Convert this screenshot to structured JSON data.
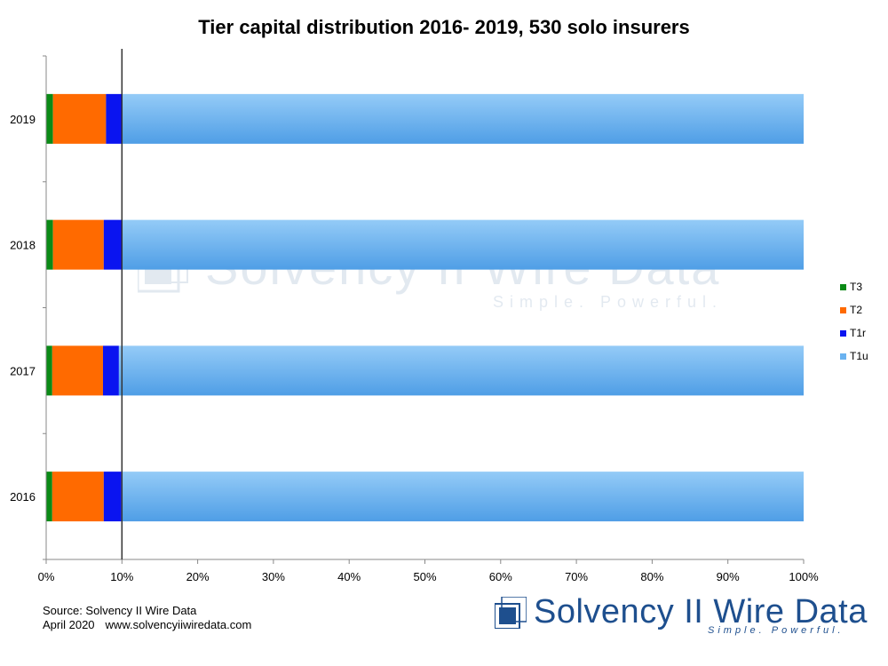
{
  "chart_data": {
    "type": "bar",
    "orientation": "horizontal",
    "stacked": true,
    "title": "Tier capital distribution 2016- 2019, 530 solo insurers",
    "categories": [
      "2019",
      "2018",
      "2017",
      "2016"
    ],
    "series": [
      {
        "name": "T3",
        "color": "#0a8a16",
        "values": [
          0.9,
          0.9,
          0.8,
          0.8
        ]
      },
      {
        "name": "T2",
        "color": "#ff6a00",
        "values": [
          7.0,
          6.7,
          6.7,
          6.8
        ]
      },
      {
        "name": "T1r",
        "color": "#0a14f0",
        "values": [
          2.1,
          2.4,
          2.1,
          2.3
        ]
      },
      {
        "name": "T1u",
        "color": "#6ab2f0",
        "values": [
          90.0,
          90.0,
          90.4,
          90.1
        ]
      }
    ],
    "xlim": [
      0,
      100
    ],
    "x_ticks": [
      "0%",
      "10%",
      "20%",
      "30%",
      "40%",
      "50%",
      "60%",
      "70%",
      "80%",
      "90%",
      "100%"
    ],
    "reference_line_x": 10,
    "grid": false,
    "legend_position": "right"
  },
  "footer": {
    "source": "Source: Solvency II Wire Data",
    "date": "April 2020",
    "url": "www.solvencyiiwiredata.com"
  },
  "logo": {
    "name": "Solvency II Wire Data",
    "tagline": "Simple. Powerful."
  }
}
